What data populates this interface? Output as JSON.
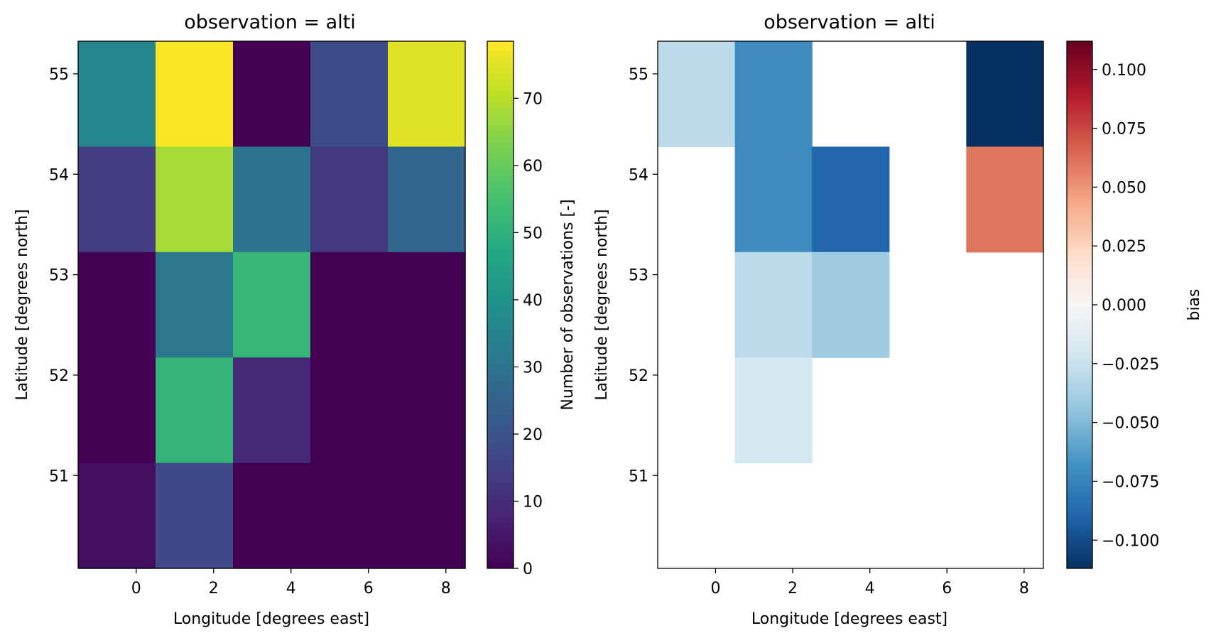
{
  "chart_data": [
    {
      "type": "heatmap",
      "title": "observation = alti",
      "xlabel": "Longitude [degrees east]",
      "ylabel": "Latitude [degrees north]",
      "x_centers": [
        -0.5,
        1.5,
        3.5,
        5.5,
        7.5
      ],
      "y_centers": [
        54.8,
        53.75,
        52.7,
        51.65,
        50.6
      ],
      "xlim": [
        -1.5,
        8.5
      ],
      "ylim": [
        50.075,
        55.325
      ],
      "xticks": [
        0,
        2,
        4,
        6,
        8
      ],
      "yticks": [
        55,
        54,
        53,
        52,
        51
      ],
      "values": [
        [
          36,
          78,
          0,
          18,
          75
        ],
        [
          14,
          68,
          30,
          13,
          26
        ],
        [
          0,
          31,
          52,
          0,
          0
        ],
        [
          0,
          51,
          9,
          0,
          0
        ],
        [
          3,
          17,
          0,
          0,
          0
        ]
      ],
      "colorbar": {
        "label": "Number of observations [-]",
        "colormap": "viridis",
        "range": [
          0,
          78.5
        ],
        "ticks": [
          0,
          10,
          20,
          30,
          40,
          50,
          60,
          70
        ]
      }
    },
    {
      "type": "heatmap",
      "title": "observation = alti",
      "xlabel": "Longitude [degrees east]",
      "ylabel": "Latitude [degrees north]",
      "x_centers": [
        -0.5,
        1.5,
        3.5,
        5.5,
        7.5
      ],
      "y_centers": [
        54.8,
        53.75,
        52.7,
        51.65,
        50.6
      ],
      "xlim": [
        -1.5,
        8.5
      ],
      "ylim": [
        50.075,
        55.325
      ],
      "xticks": [
        0,
        2,
        4,
        6,
        8
      ],
      "yticks": [
        55,
        54,
        53,
        52,
        51
      ],
      "values": [
        [
          -0.03,
          -0.07,
          null,
          null,
          -0.112
        ],
        [
          null,
          -0.07,
          -0.09,
          null,
          0.06
        ],
        [
          null,
          -0.03,
          -0.04,
          null,
          null
        ],
        [
          null,
          -0.02,
          null,
          null,
          null
        ],
        [
          null,
          null,
          null,
          null,
          null
        ]
      ],
      "colorbar": {
        "label": "bias",
        "colormap": "RdBu_r",
        "range": [
          -0.112,
          0.112
        ],
        "ticks": [
          0.1,
          0.075,
          0.05,
          0.025,
          0.0,
          -0.025,
          -0.05,
          -0.075,
          -0.1
        ],
        "tick_labels": [
          "0.100",
          "0.075",
          "0.050",
          "0.025",
          "0.000",
          "−0.025",
          "−0.050",
          "−0.075",
          "−0.100"
        ]
      }
    }
  ]
}
